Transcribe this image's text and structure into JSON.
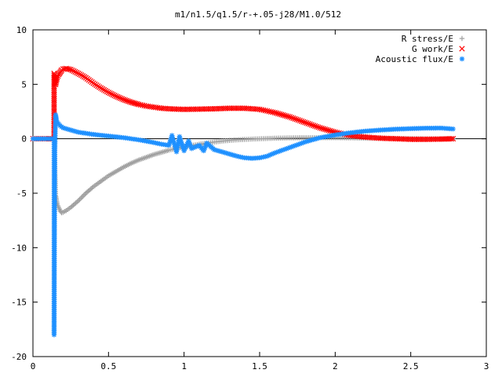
{
  "chart_data": {
    "type": "scatter",
    "title": "m1/n1.5/q1.5/r-+.05-j28/M1.0/512",
    "xlabel": "",
    "ylabel": "",
    "xlim": [
      0,
      3
    ],
    "ylim": [
      -20,
      10
    ],
    "xticks": [
      "0",
      "0.5",
      "1",
      "1.5",
      "2",
      "2.5",
      "3"
    ],
    "yticks": [
      "10",
      "5",
      "0",
      "-5",
      "-10",
      "-15",
      "-20"
    ],
    "grid": false,
    "legend_position": "top-right",
    "series": [
      {
        "name": "R stress/E",
        "marker": "plus",
        "color": "#a0a0a0",
        "points": [
          [
            0.0,
            0
          ],
          [
            0.05,
            0
          ],
          [
            0.1,
            0
          ],
          [
            0.14,
            0
          ],
          [
            0.15,
            -5.2
          ],
          [
            0.155,
            -5.6
          ],
          [
            0.16,
            -6.0
          ],
          [
            0.17,
            -6.3
          ],
          [
            0.18,
            -6.6
          ],
          [
            0.19,
            -6.8
          ],
          [
            0.2,
            -6.75
          ],
          [
            0.22,
            -6.6
          ],
          [
            0.25,
            -6.3
          ],
          [
            0.3,
            -5.7
          ],
          [
            0.35,
            -5.0
          ],
          [
            0.4,
            -4.4
          ],
          [
            0.45,
            -3.9
          ],
          [
            0.5,
            -3.4
          ],
          [
            0.55,
            -3.0
          ],
          [
            0.6,
            -2.6
          ],
          [
            0.65,
            -2.25
          ],
          [
            0.7,
            -1.95
          ],
          [
            0.75,
            -1.7
          ],
          [
            0.8,
            -1.45
          ],
          [
            0.85,
            -1.25
          ],
          [
            0.9,
            -1.05
          ],
          [
            0.95,
            -0.9
          ],
          [
            1.0,
            -0.75
          ],
          [
            1.05,
            -0.62
          ],
          [
            1.1,
            -0.5
          ],
          [
            1.15,
            -0.4
          ],
          [
            1.2,
            -0.3
          ],
          [
            1.25,
            -0.22
          ],
          [
            1.3,
            -0.15
          ],
          [
            1.35,
            -0.1
          ],
          [
            1.4,
            -0.06
          ],
          [
            1.45,
            -0.03
          ],
          [
            1.5,
            0.0
          ],
          [
            1.6,
            0.05
          ],
          [
            1.7,
            0.08
          ],
          [
            1.8,
            0.1
          ],
          [
            1.9,
            0.1
          ],
          [
            2.0,
            0.1
          ],
          [
            2.1,
            0.08
          ],
          [
            2.2,
            0.05
          ],
          [
            2.3,
            0.03
          ],
          [
            2.4,
            0.02
          ],
          [
            2.5,
            0.01
          ],
          [
            2.6,
            0.0
          ],
          [
            2.7,
            0.0
          ],
          [
            2.78,
            0.0
          ]
        ]
      },
      {
        "name": "G work/E",
        "marker": "cross",
        "color": "#ff0000",
        "points": [
          [
            0.0,
            0
          ],
          [
            0.05,
            0
          ],
          [
            0.1,
            0
          ],
          [
            0.14,
            0
          ],
          [
            0.14,
            6.0
          ],
          [
            0.15,
            5.0
          ],
          [
            0.155,
            5.3
          ],
          [
            0.16,
            5.6
          ],
          [
            0.17,
            5.9
          ],
          [
            0.18,
            6.1
          ],
          [
            0.19,
            6.3
          ],
          [
            0.2,
            6.4
          ],
          [
            0.22,
            6.45
          ],
          [
            0.25,
            6.35
          ],
          [
            0.3,
            6.0
          ],
          [
            0.35,
            5.6
          ],
          [
            0.4,
            5.1
          ],
          [
            0.45,
            4.65
          ],
          [
            0.5,
            4.25
          ],
          [
            0.55,
            3.9
          ],
          [
            0.6,
            3.6
          ],
          [
            0.65,
            3.35
          ],
          [
            0.7,
            3.15
          ],
          [
            0.75,
            3.0
          ],
          [
            0.8,
            2.9
          ],
          [
            0.85,
            2.8
          ],
          [
            0.9,
            2.75
          ],
          [
            0.95,
            2.72
          ],
          [
            1.0,
            2.7
          ],
          [
            1.1,
            2.72
          ],
          [
            1.2,
            2.75
          ],
          [
            1.3,
            2.8
          ],
          [
            1.4,
            2.8
          ],
          [
            1.5,
            2.7
          ],
          [
            1.6,
            2.4
          ],
          [
            1.7,
            2.0
          ],
          [
            1.8,
            1.5
          ],
          [
            1.9,
            1.0
          ],
          [
            2.0,
            0.6
          ],
          [
            2.1,
            0.3
          ],
          [
            2.2,
            0.15
          ],
          [
            2.3,
            0.05
          ],
          [
            2.4,
            0.0
          ],
          [
            2.5,
            -0.05
          ],
          [
            2.6,
            -0.05
          ],
          [
            2.7,
            -0.03
          ],
          [
            2.78,
            0.0
          ]
        ]
      },
      {
        "name": "Acoustic flux/E",
        "marker": "star",
        "color": "#1e90ff",
        "points": [
          [
            0.0,
            0
          ],
          [
            0.05,
            0
          ],
          [
            0.1,
            0
          ],
          [
            0.14,
            0
          ],
          [
            0.14,
            -18.0
          ],
          [
            0.145,
            -1.1
          ],
          [
            0.15,
            2.2
          ],
          [
            0.155,
            1.8
          ],
          [
            0.16,
            1.5
          ],
          [
            0.18,
            1.2
          ],
          [
            0.2,
            1.0
          ],
          [
            0.25,
            0.8
          ],
          [
            0.3,
            0.6
          ],
          [
            0.4,
            0.4
          ],
          [
            0.5,
            0.25
          ],
          [
            0.6,
            0.1
          ],
          [
            0.7,
            -0.1
          ],
          [
            0.8,
            -0.35
          ],
          [
            0.85,
            -0.5
          ],
          [
            0.9,
            -0.6
          ],
          [
            0.92,
            0.3
          ],
          [
            0.95,
            -1.2
          ],
          [
            0.97,
            0.2
          ],
          [
            1.0,
            -1.1
          ],
          [
            1.03,
            -0.2
          ],
          [
            1.05,
            -0.9
          ],
          [
            1.1,
            -0.6
          ],
          [
            1.13,
            -1.1
          ],
          [
            1.15,
            -0.4
          ],
          [
            1.2,
            -1.0
          ],
          [
            1.25,
            -1.2
          ],
          [
            1.3,
            -1.4
          ],
          [
            1.35,
            -1.6
          ],
          [
            1.4,
            -1.75
          ],
          [
            1.45,
            -1.8
          ],
          [
            1.5,
            -1.75
          ],
          [
            1.55,
            -1.6
          ],
          [
            1.6,
            -1.3
          ],
          [
            1.7,
            -0.8
          ],
          [
            1.8,
            -0.3
          ],
          [
            1.9,
            0.1
          ],
          [
            2.0,
            0.35
          ],
          [
            2.1,
            0.55
          ],
          [
            2.2,
            0.7
          ],
          [
            2.3,
            0.8
          ],
          [
            2.4,
            0.88
          ],
          [
            2.5,
            0.93
          ],
          [
            2.6,
            0.97
          ],
          [
            2.7,
            0.98
          ],
          [
            2.78,
            0.9
          ]
        ]
      }
    ]
  }
}
